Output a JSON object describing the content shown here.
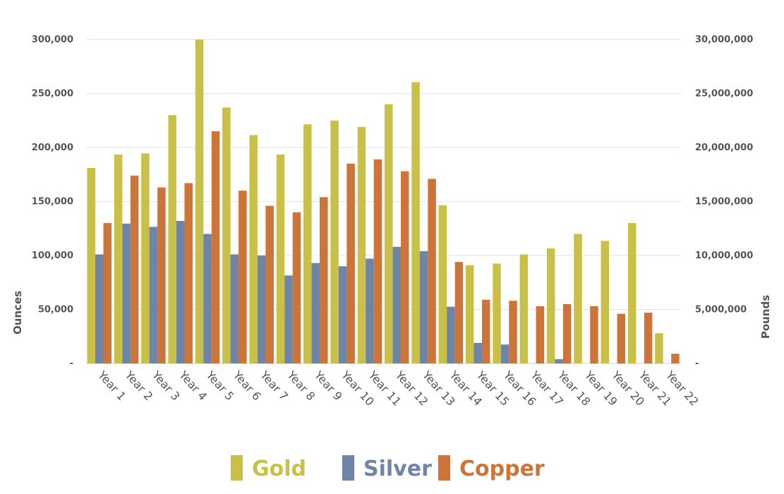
{
  "chart_data": {
    "type": "bar",
    "categories": [
      "Year 1",
      "Year 2",
      "Year 3",
      "Year 4",
      "Year 5",
      "Year 6",
      "Year 7",
      "Year 8",
      "Year 9",
      "Year 10",
      "Year 11",
      "Year 12",
      "Year 13",
      "Year 14",
      "Year 15",
      "Year 16",
      "Year 17",
      "Year 18",
      "Year 19",
      "Year 20",
      "Year 21",
      "Year 22"
    ],
    "series": [
      {
        "name": "Gold",
        "axis": "left",
        "color": "#C9C147",
        "values": [
          181000,
          193500,
          194500,
          230000,
          300000,
          237000,
          211500,
          193500,
          221500,
          225000,
          219000,
          240000,
          260500,
          146500,
          91000,
          92500,
          101000,
          106500,
          120000,
          113500,
          130000,
          28000
        ]
      },
      {
        "name": "Silver",
        "axis": "left",
        "color": "#6F85A8",
        "values": [
          101000,
          129500,
          126500,
          132000,
          120000,
          101000,
          100000,
          81500,
          93000,
          90000,
          97000,
          108000,
          104000,
          52500,
          19000,
          17500,
          0,
          4000,
          0,
          0,
          0,
          0
        ]
      },
      {
        "name": "Copper",
        "axis": "right",
        "color": "#CD7438",
        "values": [
          13000000,
          17400000,
          16300000,
          16700000,
          21500000,
          16000000,
          14600000,
          14000000,
          15400000,
          18500000,
          18900000,
          17800000,
          17100000,
          9400000,
          5900000,
          5800000,
          5300000,
          5500000,
          5300000,
          4600000,
          4700000,
          900000
        ]
      }
    ],
    "ylabel": "Ounces",
    "y2label": "Pounds",
    "ylim": [
      0,
      300000
    ],
    "y2lim": [
      0,
      30000000
    ],
    "yticks": [
      "-",
      "50,000",
      "100,000",
      "150,000",
      "200,000",
      "250,000",
      "300,000"
    ],
    "y2ticks": [
      "-",
      "5,000,000",
      "10,000,000",
      "15,000,000",
      "20,000,000",
      "25,000,000",
      "30,000,000"
    ],
    "grid": true,
    "legend_position": "bottom-center",
    "legend": [
      "Gold",
      "Silver",
      "Copper"
    ]
  }
}
